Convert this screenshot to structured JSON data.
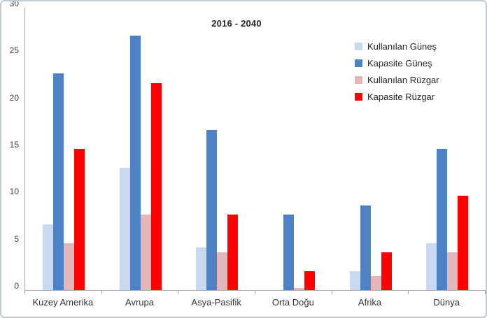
{
  "chart_data": {
    "type": "bar",
    "title": "2016 - 2040",
    "categories": [
      "Kuzey Amerika",
      "Avrupa",
      "Asya-Pasifik",
      "Orta Doğu",
      "Afrika",
      "Dünya"
    ],
    "series": [
      {
        "name": "Kullanılan Güneş",
        "color": "#c9d9f0",
        "values": [
          7,
          13,
          4.5,
          0,
          2,
          5
        ]
      },
      {
        "name": "Kapasite Güneş",
        "color": "#4e82c6",
        "values": [
          23,
          27,
          17,
          8,
          9,
          15
        ]
      },
      {
        "name": "Kullanılan Rüzgar",
        "color": "#e3b7b7",
        "values": [
          5,
          8,
          4,
          0.2,
          1.5,
          4
        ]
      },
      {
        "name": "Kapasite Rüzgar",
        "color": "#fe0000",
        "values": [
          15,
          22,
          8,
          2,
          4,
          10
        ]
      }
    ],
    "ylim": [
      0,
      30
    ],
    "yticks": [
      0,
      5,
      10,
      15,
      20,
      25,
      30
    ],
    "grid": false,
    "legend_position": "upper-right"
  }
}
